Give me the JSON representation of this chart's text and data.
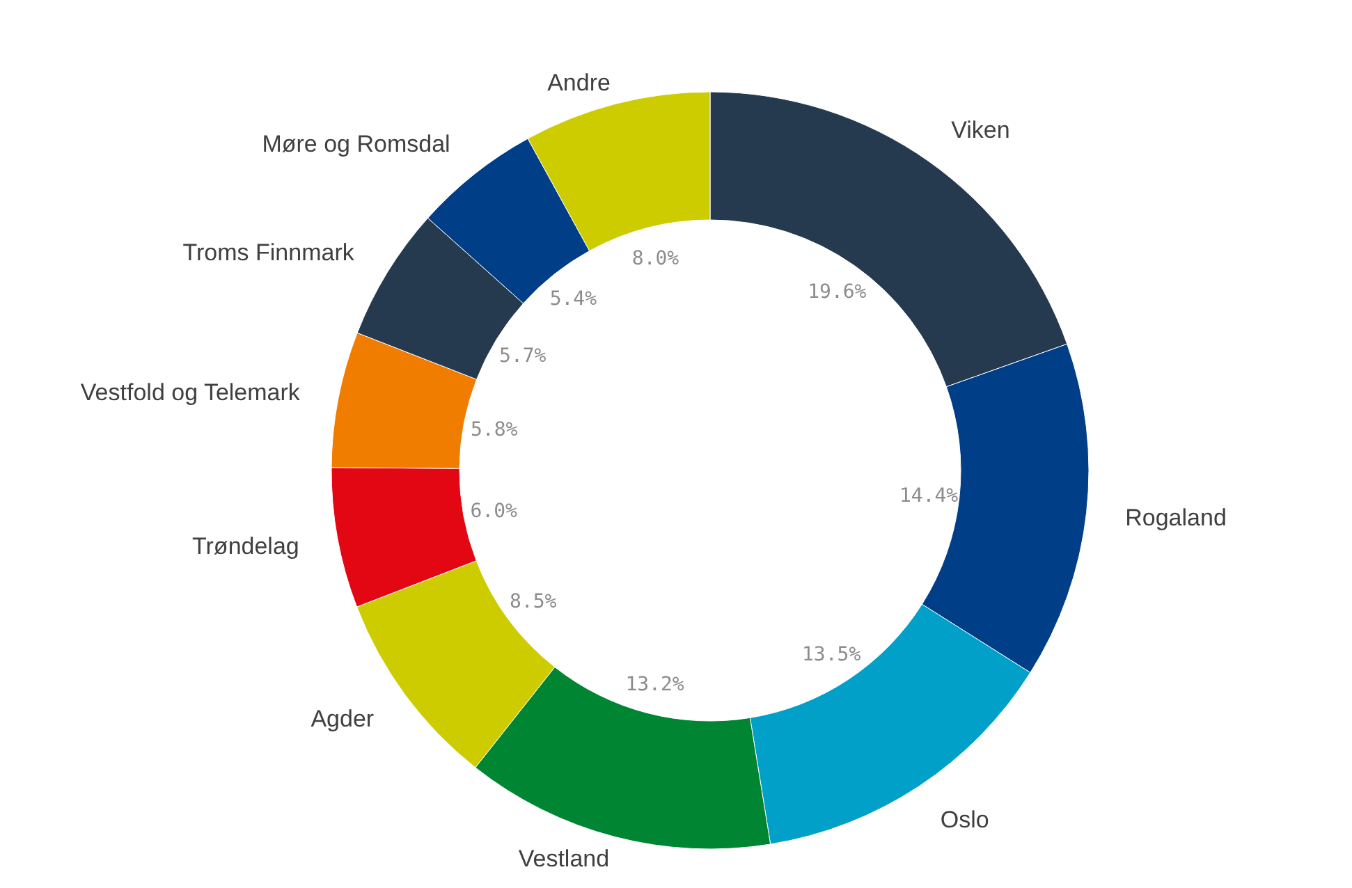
{
  "chart_data": {
    "type": "donut",
    "categories": [
      "Viken",
      "Rogaland",
      "Oslo",
      "Vestland",
      "Agder",
      "Trøndelag",
      "Vestfold og Telemark",
      "Troms Finnmark",
      "Møre og Romsdal",
      "Andre"
    ],
    "values": [
      19.6,
      14.4,
      13.5,
      13.2,
      8.5,
      6.0,
      5.8,
      5.7,
      5.4,
      8.0
    ],
    "colors": [
      "#263a4f",
      "#003f87",
      "#00a0c8",
      "#008533",
      "#cccc00",
      "#e30613",
      "#f07c00",
      "#263a4f",
      "#003f87",
      "#cccc00"
    ],
    "value_labels": [
      "19.6%",
      "14.4%",
      "13.5%",
      "13.2%",
      "8.5%",
      "6.0%",
      "5.8%",
      "5.7%",
      "5.4%",
      "8.0%"
    ]
  }
}
